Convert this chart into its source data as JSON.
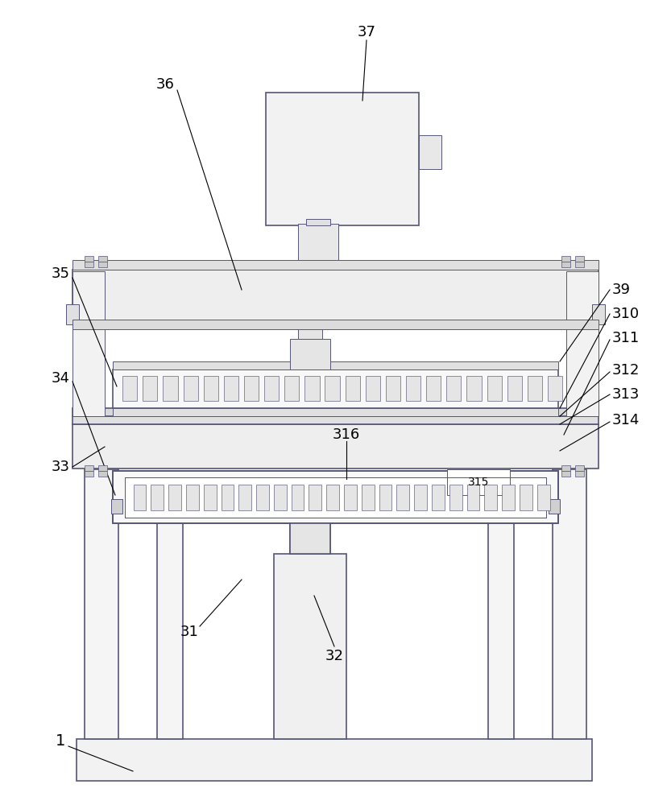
{
  "bg_color": "#ffffff",
  "lc": "#555577",
  "lc_thin": "#777799",
  "fig_width": 8.33,
  "fig_height": 10.0
}
